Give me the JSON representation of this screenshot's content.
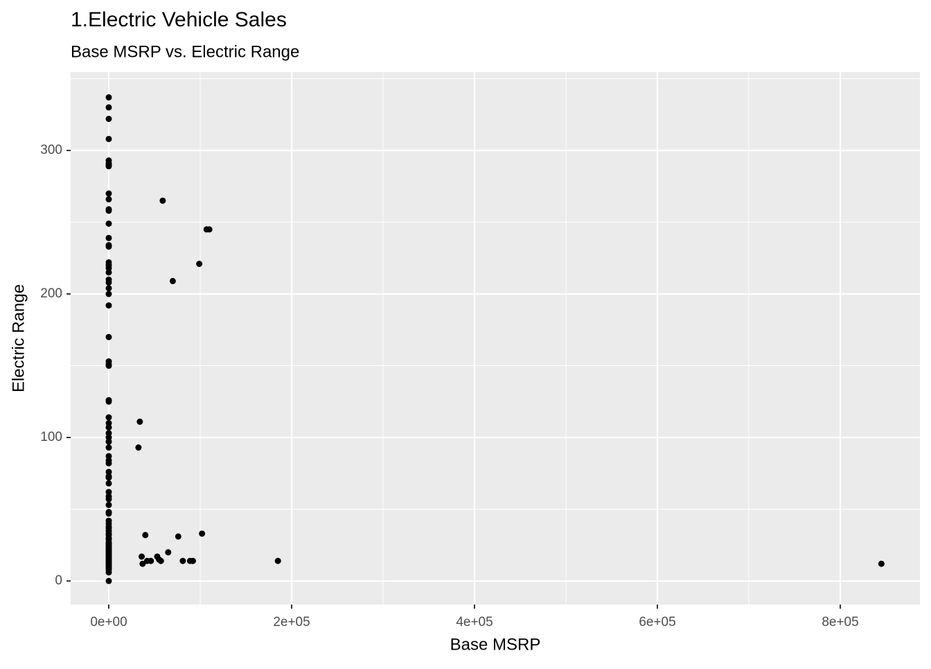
{
  "chart_data": {
    "type": "scatter",
    "title": "1.Electric Vehicle Sales",
    "subtitle": "Base MSRP vs. Electric Range",
    "x_label": "Base MSRP",
    "y_label": "Electric Range",
    "color": "#000000",
    "grid": true,
    "xlim": [
      -41667,
      887121
    ],
    "ylim": [
      -16.4,
      354.6
    ],
    "xticks": [
      {
        "value": 0,
        "label": "0e+00"
      },
      {
        "value": 200000,
        "label": "2e+05"
      },
      {
        "value": 400000,
        "label": "4e+05"
      },
      {
        "value": 600000,
        "label": "6e+05"
      },
      {
        "value": 800000,
        "label": "8e+05"
      }
    ],
    "yticks": [
      0,
      100,
      200,
      300
    ],
    "x": [
      0,
      0,
      0,
      0,
      0,
      0,
      0,
      0,
      0,
      0,
      0,
      0,
      0,
      0,
      0,
      0,
      0,
      0,
      0,
      0,
      0,
      0,
      0,
      0,
      0,
      0,
      0,
      0,
      0,
      0,
      0,
      0,
      0,
      0,
      0,
      0,
      0,
      0,
      0,
      0,
      0,
      0,
      0,
      0,
      0,
      0,
      0,
      0,
      0,
      0,
      0,
      0,
      0,
      0,
      0,
      0,
      0,
      0,
      0,
      0,
      0,
      0,
      0,
      0,
      0,
      0,
      0,
      0,
      0,
      0,
      0,
      0,
      0,
      0,
      0,
      0,
      0,
      0,
      0,
      0,
      0,
      0,
      59000,
      107000,
      110000,
      99000,
      70000,
      34000,
      32500,
      40000,
      76000,
      102000,
      36000,
      37000,
      42000,
      46000,
      53000,
      55000,
      57000,
      65000,
      81000,
      89000,
      92000,
      185000,
      845000
    ],
    "values": [
      337,
      330,
      322,
      308,
      293,
      291,
      290,
      289,
      270,
      266,
      259,
      258,
      249,
      239,
      234,
      233,
      222,
      220,
      218,
      215,
      210,
      208,
      204,
      200,
      192,
      170,
      153,
      151,
      150,
      126,
      125,
      114,
      110,
      107,
      103,
      100,
      97,
      93,
      87,
      84,
      82,
      76,
      73,
      72,
      68,
      62,
      59,
      57,
      53,
      48,
      47,
      42,
      40,
      38,
      37,
      35,
      33,
      32,
      30,
      29,
      27,
      26,
      25,
      24,
      23,
      22,
      21,
      20,
      19,
      18,
      17,
      16,
      15,
      14,
      13,
      12,
      11,
      10,
      9,
      8,
      6,
      0,
      265,
      245,
      245,
      221,
      209,
      111,
      93,
      32,
      31,
      33,
      17,
      12,
      14,
      14,
      17,
      15,
      14,
      20,
      14,
      14,
      14,
      14,
      12
    ]
  }
}
